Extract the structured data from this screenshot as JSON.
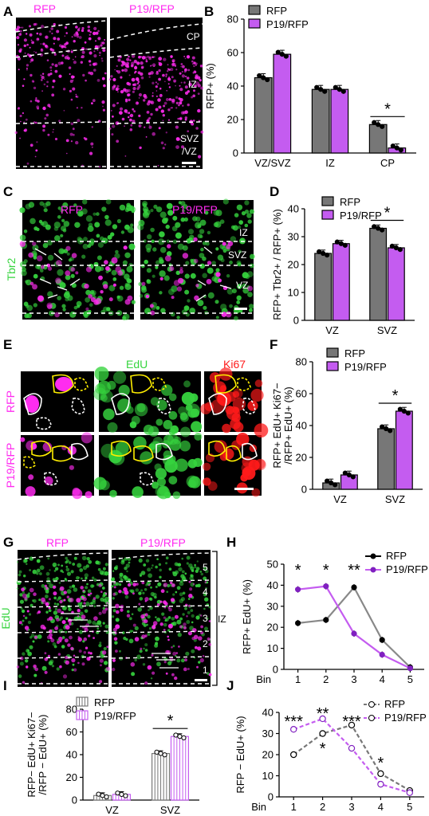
{
  "colors": {
    "rfp": "#777777",
    "p19": "#c45cf0",
    "magenta": "#ff2cf0",
    "green": "#36d43e",
    "red": "#ff1a1a",
    "yellow": "#ffee00"
  },
  "panel_letters": {
    "A": "A",
    "B": "B",
    "C": "C",
    "D": "D",
    "E": "E",
    "F": "F",
    "G": "G",
    "H": "H",
    "I": "I",
    "J": "J"
  },
  "images": {
    "A": {
      "left_title": "RFP",
      "right_title": "P19/RFP",
      "zone_cp": "CP",
      "zone_iz": "IZ",
      "zone_svz1": "SVZ",
      "zone_svz2": "/VZ"
    },
    "C": {
      "left_title": "RFP",
      "right_title": "P19/RFP",
      "stain": "Tbr2",
      "zone_iz": "IZ",
      "zone_svz": "SVZ",
      "zone_vz": "VZ"
    },
    "E": {
      "col_edu": "EdU",
      "col_ki67": "Ki67",
      "row_rfp": "RFP",
      "row_p19": "P19/RFP"
    },
    "G": {
      "left_title": "RFP",
      "right_title": "P19/RFP",
      "stain": "EdU",
      "bins": [
        "5",
        "4",
        "3",
        "2",
        "1"
      ],
      "iz_label": "IZ"
    }
  },
  "chart_data": [
    {
      "panel": "B",
      "type": "bar",
      "ylabel": "RFP+ (%)",
      "ylim": [
        0,
        80
      ],
      "yticks": [
        "0",
        "20",
        "40",
        "60",
        "80"
      ],
      "categories": [
        "VZ/SVZ",
        "IZ",
        "CP"
      ],
      "series": [
        {
          "name": "RFP",
          "values": [
            45,
            38,
            17
          ]
        },
        {
          "name": "P19/RFP",
          "values": [
            59,
            38,
            3
          ]
        }
      ],
      "significance": [
        "*"
      ],
      "legend": "top"
    },
    {
      "panel": "D",
      "type": "bar",
      "ylabel": "RFP+ Tbr2+ / RFP+ (%)",
      "ylim": [
        0,
        40
      ],
      "yticks": [
        "0",
        "10",
        "20",
        "30",
        "40"
      ],
      "categories": [
        "VZ",
        "SVZ"
      ],
      "series": [
        {
          "name": "RFP",
          "values": [
            24,
            33
          ]
        },
        {
          "name": "P19/RFP",
          "values": [
            27.5,
            26
          ]
        }
      ],
      "significance": [
        "*"
      ],
      "legend": "top"
    },
    {
      "panel": "F",
      "type": "bar",
      "ylabel_line1": "RFP+ EdU+ Ki67−",
      "ylabel_line2": "/RFP+ EdU+ (%)",
      "ylim": [
        0,
        80
      ],
      "yticks": [
        "0",
        "20",
        "40",
        "60",
        "80"
      ],
      "categories": [
        "VZ",
        "SVZ"
      ],
      "series": [
        {
          "name": "RFP",
          "values": [
            4,
            38
          ]
        },
        {
          "name": "P19/RFP",
          "values": [
            9,
            49
          ]
        }
      ],
      "significance": [
        "*"
      ],
      "legend": "top"
    },
    {
      "panel": "H",
      "type": "line",
      "ylabel": "RFP+ EdU+ (%)",
      "xlabel": "Bin",
      "ylim": [
        0,
        50
      ],
      "yticks": [
        "0",
        "10",
        "20",
        "30",
        "40",
        "50"
      ],
      "x": [
        "1",
        "2",
        "3",
        "4",
        "5"
      ],
      "series": [
        {
          "name": "RFP",
          "values": [
            22,
            23.5,
            39,
            14,
            1
          ]
        },
        {
          "name": "P19/RFP",
          "values": [
            38,
            39.5,
            17,
            7,
            0.5
          ]
        }
      ],
      "significance": [
        "*",
        "*",
        "**"
      ],
      "legend": "top-right"
    },
    {
      "panel": "I",
      "type": "bar",
      "ylabel_line1": "RFP− EdU+ Ki67−",
      "ylabel_line2": "/RFP − EdU+ (%)",
      "ylim": [
        0,
        80
      ],
      "yticks": [
        "0",
        "20",
        "40",
        "60",
        "80"
      ],
      "categories": [
        "VZ",
        "SVZ"
      ],
      "series": [
        {
          "name": "RFP",
          "values": [
            4,
            41
          ]
        },
        {
          "name": "P19/RFP",
          "values": [
            5,
            56
          ]
        }
      ],
      "significance": [
        "*"
      ],
      "legend": "top"
    },
    {
      "panel": "J",
      "type": "line",
      "ylabel": "RFP − EdU+ (%)",
      "xlabel": "Bin",
      "ylim": [
        0,
        40
      ],
      "yticks": [
        "0",
        "10",
        "20",
        "30",
        "40"
      ],
      "x": [
        "1",
        "2",
        "3",
        "4",
        "5"
      ],
      "series": [
        {
          "name": "RFP",
          "values": [
            20,
            30,
            34,
            11,
            3
          ]
        },
        {
          "name": "P19/RFP",
          "values": [
            32,
            37,
            23,
            6,
            2
          ]
        }
      ],
      "significance": [
        "***",
        "**",
        "*",
        "***",
        "*"
      ],
      "legend": "top-right"
    }
  ]
}
